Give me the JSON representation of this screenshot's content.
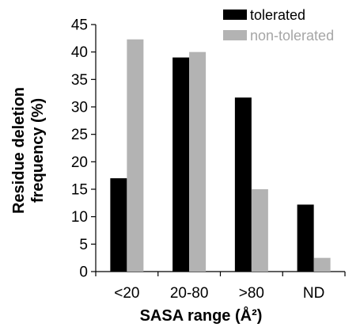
{
  "chart_data": {
    "type": "bar",
    "categories": [
      "<20",
      "20-80",
      ">80",
      "ND"
    ],
    "series": [
      {
        "name": "tolerated",
        "values": [
          17,
          39,
          31.7,
          12.2
        ],
        "color": "#000000"
      },
      {
        "name": "non-tolerated",
        "values": [
          42.3,
          40,
          15,
          2.5
        ],
        "color": "#b3b3b3"
      }
    ],
    "xlabel": "SASA range (Å²)",
    "ylabel_lines": [
      "Residue deletion",
      "frequency (%)"
    ],
    "ylim": [
      0,
      45
    ],
    "yticks": [
      "0",
      "5",
      "10",
      "15",
      "20",
      "25",
      "30",
      "35",
      "40",
      "45"
    ],
    "grid": false,
    "legend_position": "top-right"
  }
}
